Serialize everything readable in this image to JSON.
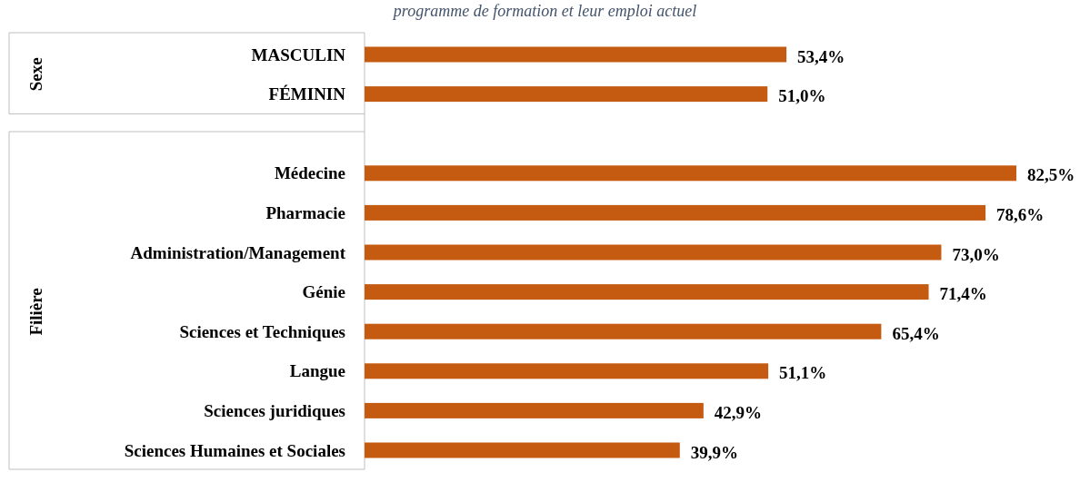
{
  "chart_data": {
    "type": "bar",
    "orientation": "horizontal",
    "title": "programme de formation et leur emploi actuel",
    "categories": [
      "MASCULIN",
      "FÉMININ",
      null,
      "Médecine",
      "Pharmacie",
      "Administration/Management",
      "Génie",
      "Sciences et Techniques",
      "Langue",
      "Sciences juridiques",
      "Sciences Humaines et Sociales"
    ],
    "values": [
      53.4,
      51.0,
      null,
      82.5,
      78.6,
      73.0,
      71.4,
      65.4,
      51.1,
      42.9,
      39.9
    ],
    "value_labels": [
      "53,4%",
      "51,0%",
      null,
      "82,5%",
      "78,6%",
      "73,0%",
      "71,4%",
      "65,4%",
      "51,1%",
      "42,9%",
      "39,9%"
    ],
    "color": "#c55a11",
    "annotations": [
      "Sexe",
      "Filière"
    ]
  }
}
